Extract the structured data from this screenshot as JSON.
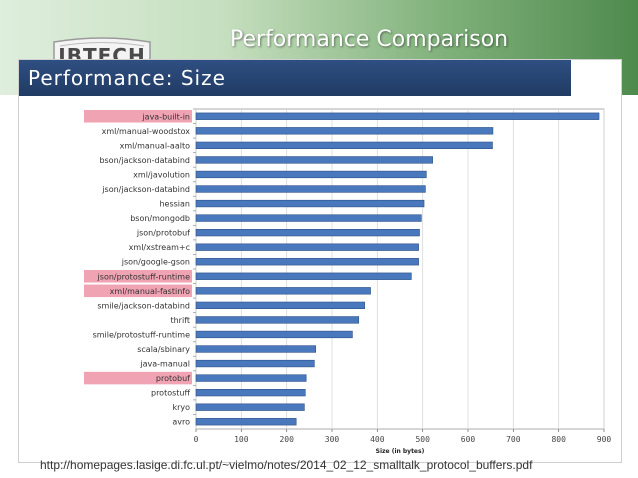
{
  "slide": {
    "title": "Performance Comparison",
    "logo_text": "IBTECH",
    "source_url": "http://homepages.lasige.di.fc.ul.pt/~vielmo/notes/2014_02_12_smalltalk_protocol_buffers.pdf"
  },
  "panel": {
    "title": "Performance: Size"
  },
  "colors": {
    "bar": "#4a78bd",
    "bar_edge": "#2c4f86",
    "highlight": "#f0a3b3",
    "header": "#243f6b"
  },
  "chart_data": {
    "type": "bar",
    "orientation": "horizontal",
    "title": "Performance: Size",
    "xlabel": "Size (in bytes)",
    "ylabel": "",
    "xlim": [
      0,
      900
    ],
    "xticks": [
      "0",
      "100",
      "200",
      "300",
      "400",
      "500",
      "600",
      "700",
      "800",
      "900"
    ],
    "grid": true,
    "categories": [
      "java-built-in",
      "xml/manual-woodstox",
      "xml/manual-aalto",
      "bson/jackson-databind",
      "xml/javolution",
      "json/jackson-databind",
      "hessian",
      "bson/mongodb",
      "json/protobuf",
      "xml/xstream+c",
      "json/google-gson",
      "json/protostuff-runtime",
      "xml/manual-fastinfo",
      "smile/jackson-databind",
      "thrift",
      "smile/protostuff-runtime",
      "scala/sbinary",
      "java-manual",
      "protobuf",
      "protostuff",
      "kryo",
      "avro"
    ],
    "values": [
      889,
      655,
      654,
      522,
      508,
      506,
      503,
      497,
      493,
      491,
      491,
      475,
      385,
      372,
      359,
      345,
      264,
      261,
      243,
      241,
      239,
      221
    ],
    "highlighted": [
      "java-built-in",
      "json/protostuff-runtime",
      "xml/manual-fastinfo",
      "protobuf"
    ]
  }
}
